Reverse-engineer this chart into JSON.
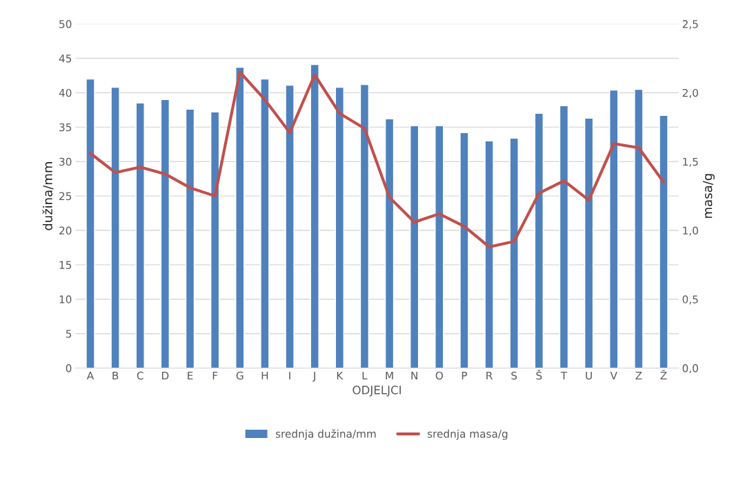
{
  "chart_data": {
    "type": "bar",
    "xlabel": "ODJELJCI",
    "ylabel": "dužina/mm",
    "y2label": "masa/g",
    "categories": [
      "A",
      "B",
      "C",
      "D",
      "E",
      "F",
      "G",
      "H",
      "I",
      "J",
      "K",
      "L",
      "M",
      "N",
      "O",
      "P",
      "R",
      "S",
      "Š",
      "T",
      "U",
      "V",
      "Z",
      "Ž"
    ],
    "series": [
      {
        "name": "srednja dužina/mm",
        "color": "#4f81bd",
        "values": [
          42.0,
          40.8,
          38.5,
          39.0,
          37.6,
          37.2,
          43.7,
          42.0,
          41.1,
          44.1,
          40.8,
          41.2,
          36.2,
          35.2,
          35.2,
          34.2,
          33.0,
          33.4,
          37.0,
          38.1,
          36.3,
          40.4,
          40.5,
          36.7
        ]
      },
      {
        "name": "srednja masa/g",
        "type": "line",
        "axis": "y2",
        "color": "#c0504d",
        "values": [
          1.56,
          1.42,
          1.46,
          1.41,
          1.31,
          1.25,
          2.15,
          1.95,
          1.71,
          2.13,
          1.85,
          1.74,
          1.24,
          1.06,
          1.12,
          1.03,
          0.88,
          0.92,
          1.27,
          1.36,
          1.22,
          1.63,
          1.6,
          1.35
        ]
      }
    ],
    "ylim": [
      0,
      50
    ],
    "yticks": [
      0,
      5,
      10,
      15,
      20,
      25,
      30,
      35,
      40,
      45,
      50
    ],
    "y2lim": [
      0,
      2.5
    ],
    "y2ticks": [
      {
        "value": 0,
        "label": "0,0"
      },
      {
        "value": 0.5,
        "label": "0,5"
      },
      {
        "value": 1,
        "label": "1,0"
      },
      {
        "value": 1.5,
        "label": "1,5"
      },
      {
        "value": 2,
        "label": "2,0"
      },
      {
        "value": 2.5,
        "label": "2,5"
      }
    ],
    "grid": "y",
    "legend": "bottom",
    "marker": "none",
    "line_style": "solid"
  }
}
